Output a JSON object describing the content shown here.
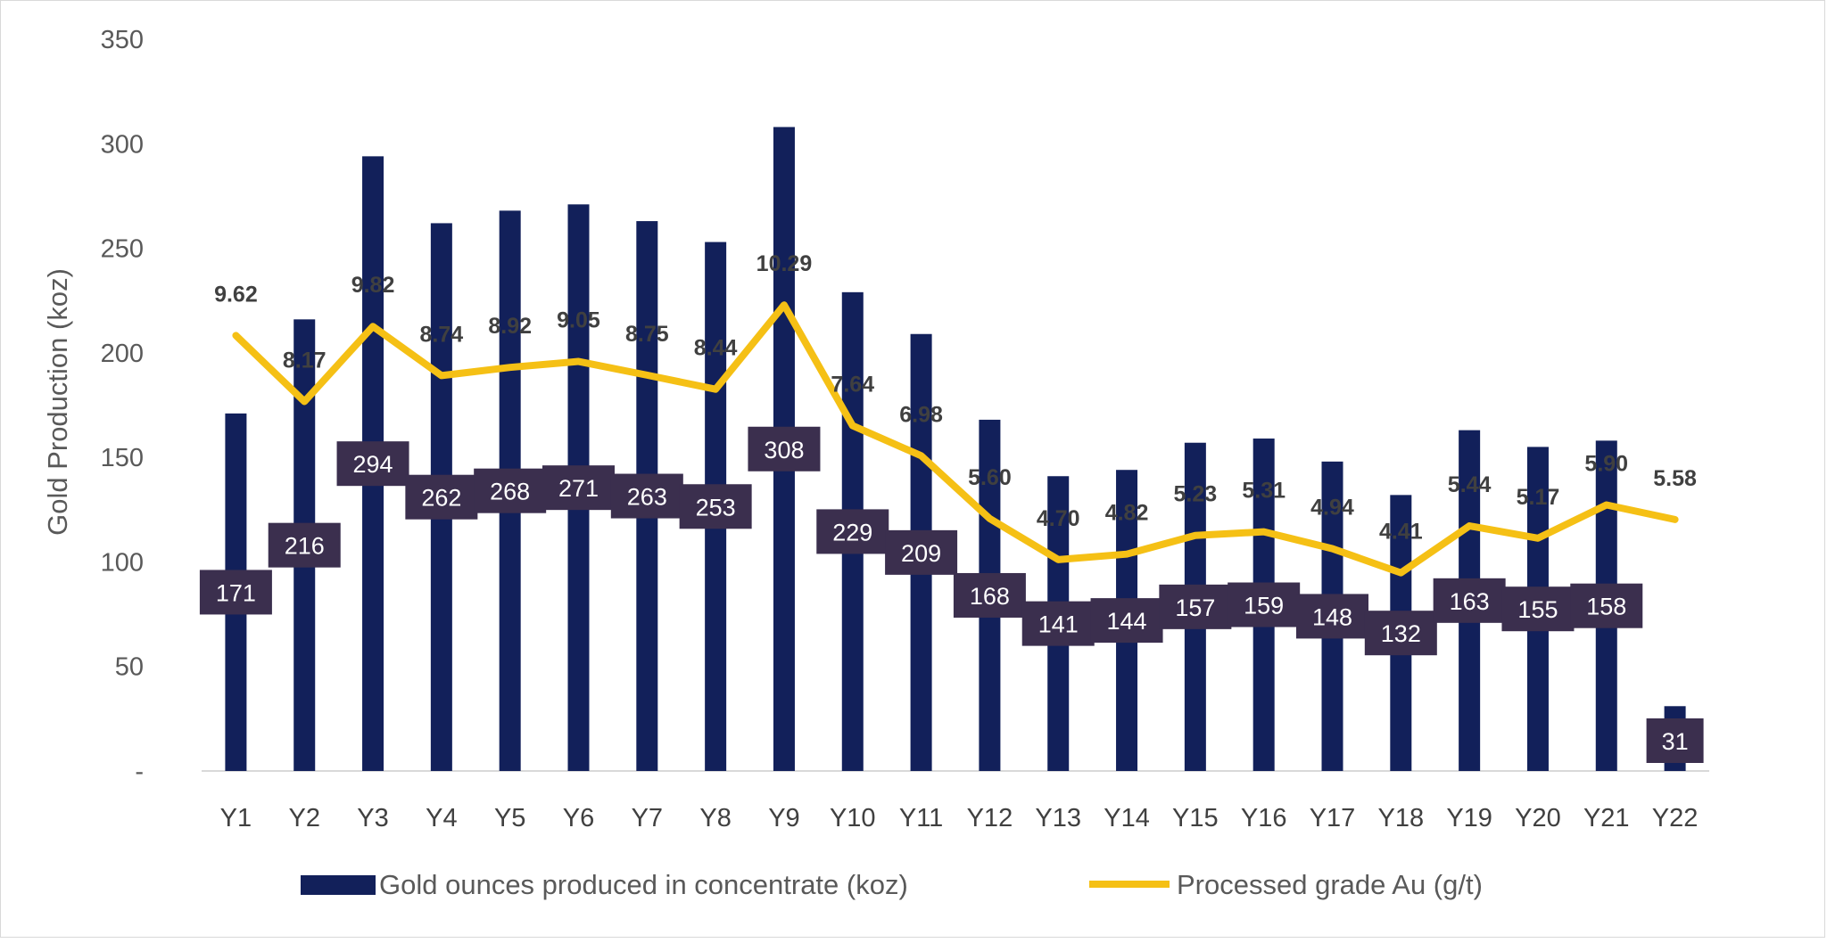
{
  "chart_data": {
    "type": "bar",
    "categories": [
      "Y1",
      "Y2",
      "Y3",
      "Y4",
      "Y5",
      "Y6",
      "Y7",
      "Y8",
      "Y9",
      "Y10",
      "Y11",
      "Y12",
      "Y13",
      "Y14",
      "Y15",
      "Y16",
      "Y17",
      "Y18",
      "Y19",
      "Y20",
      "Y21",
      "Y22"
    ],
    "series": [
      {
        "name": "Gold ounces produced in concentrate (koz)",
        "type": "bar",
        "axis": "primary",
        "color": "#12205A",
        "values": [
          171,
          216,
          294,
          262,
          268,
          271,
          263,
          253,
          308,
          229,
          209,
          168,
          141,
          144,
          157,
          159,
          148,
          132,
          163,
          155,
          158,
          31
        ],
        "data_labels": [
          "171",
          "216",
          "294",
          "262",
          "268",
          "271",
          "263",
          "253",
          "308",
          "229",
          "209",
          "168",
          "141",
          "144",
          "157",
          "159",
          "148",
          "132",
          "163",
          "155",
          "158",
          "31"
        ]
      },
      {
        "name": "Processed grade Au (g/t)",
        "type": "line",
        "axis": "secondary",
        "color": "#F5C015",
        "values": [
          9.62,
          8.17,
          9.82,
          8.74,
          8.92,
          9.05,
          8.75,
          8.44,
          10.29,
          7.64,
          6.98,
          5.6,
          4.7,
          4.82,
          5.23,
          5.31,
          4.94,
          4.41,
          5.44,
          5.17,
          5.9,
          5.58
        ],
        "data_labels": [
          "9.62",
          "8.17",
          "9.82",
          "8.74",
          "8.92",
          "9.05",
          "8.75",
          "8.44",
          "10.29",
          "7.64",
          "6.98",
          "5.60",
          "4.70",
          "4.82",
          "5.23",
          "5.31",
          "4.94",
          "4.41",
          "5.44",
          "5.17",
          "5.90",
          "5.58"
        ]
      }
    ],
    "title": "",
    "xlabel": "",
    "ylabel": "Gold Production (koz)",
    "ylim": [
      0,
      350
    ],
    "y_ticks": [
      "-",
      "50",
      "100",
      "150",
      "200",
      "250",
      "300",
      "350"
    ],
    "grid": false,
    "legend_position": "bottom",
    "data_label_box_color": "#3B2F4E"
  }
}
